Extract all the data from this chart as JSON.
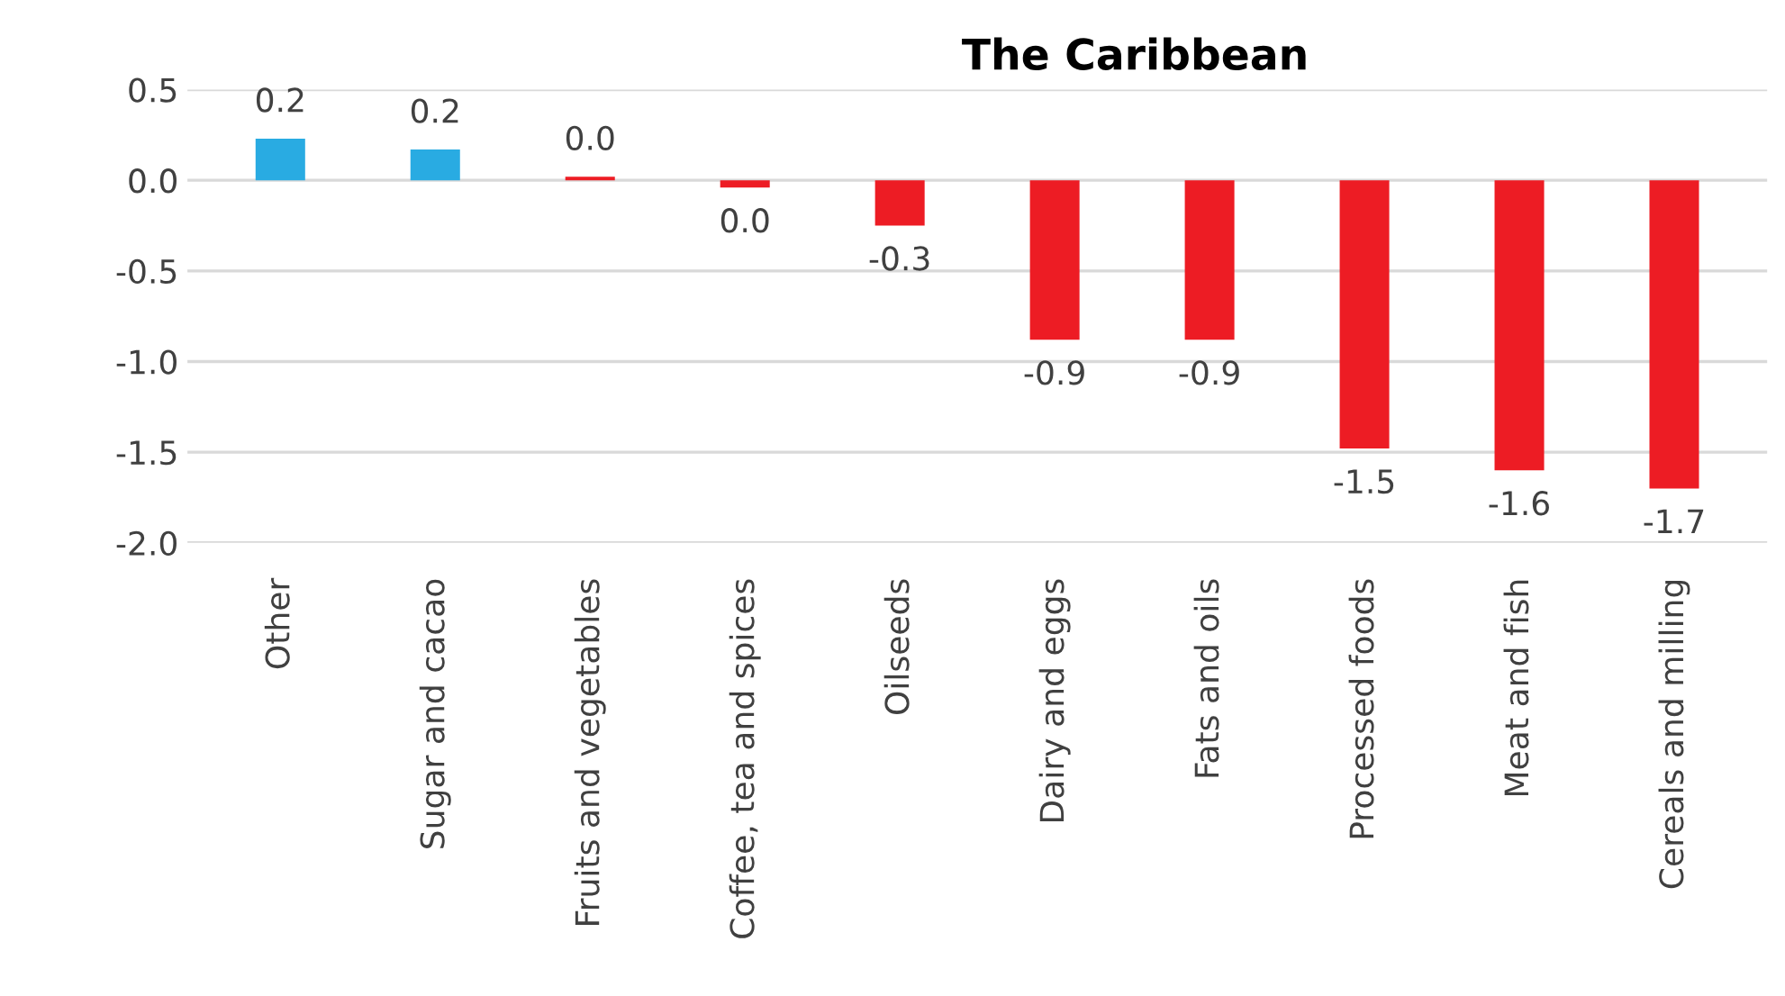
{
  "chart_data": {
    "type": "bar",
    "title": "The Caribbean",
    "categories": [
      "Other",
      "Sugar and cacao",
      "Fruits and vegetables",
      "Coffee, tea and spices",
      "Oilseeds",
      "Dairy and eggs",
      "Fats and oils",
      "Processed foods",
      "Meat and fish",
      "Cereals and milling"
    ],
    "values": [
      0.23,
      0.17,
      0.02,
      -0.04,
      -0.25,
      -0.88,
      -0.88,
      -1.48,
      -1.6,
      -1.7
    ],
    "value_labels": [
      "0.2",
      "0.2",
      "0.0",
      "0.0",
      "-0.3",
      "-0.9",
      "-0.9",
      "-1.5",
      "-1.6",
      "-1.7"
    ],
    "colors": [
      "#29abe2",
      "#29abe2",
      "#ed1c24",
      "#ed1c24",
      "#ed1c24",
      "#ed1c24",
      "#ed1c24",
      "#ed1c24",
      "#ed1c24",
      "#ed1c24"
    ],
    "ylim": [
      -2.0,
      0.5
    ],
    "yticks": [
      {
        "value": -2.0,
        "label": "-2.0"
      },
      {
        "value": -1.5,
        "label": "-1.5"
      },
      {
        "value": -1.0,
        "label": "-1.0"
      },
      {
        "value": -0.5,
        "label": "-0.5"
      },
      {
        "value": 0.0,
        "label": "0.0"
      },
      {
        "value": 0.5,
        "label": "0.5"
      }
    ],
    "grid": "y"
  }
}
